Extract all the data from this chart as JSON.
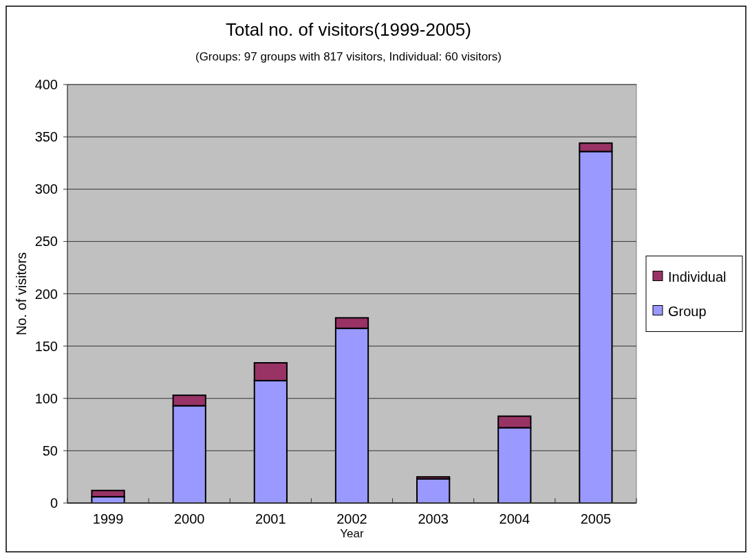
{
  "chart_data": {
    "type": "bar",
    "title": "Total no. of visitors(1999-2005)",
    "subtitle": "(Groups: 97 groups with 817 visitors, Individual: 60 visitors)",
    "xlabel": "Year",
    "ylabel": "No. of visitors",
    "categories": [
      "1999",
      "2000",
      "2001",
      "2002",
      "2003",
      "2004",
      "2005"
    ],
    "series": [
      {
        "name": "Group",
        "color": "#9999ff",
        "values": [
          6,
          93,
          117,
          167,
          23,
          72,
          336
        ]
      },
      {
        "name": "Individual",
        "color": "#993366",
        "values": [
          6,
          10,
          17,
          10,
          2,
          11,
          8
        ]
      }
    ],
    "stacked": true,
    "ylim": [
      0,
      400
    ],
    "yticks": [
      0,
      50,
      100,
      150,
      200,
      250,
      300,
      350,
      400
    ],
    "grid": "y",
    "legend": "right"
  }
}
